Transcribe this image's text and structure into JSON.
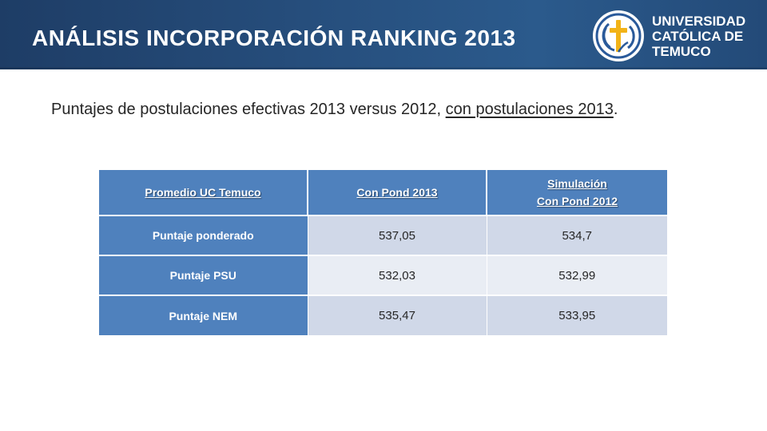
{
  "header": {
    "title": "ANÁLISIS INCORPORACIÓN RANKING 2013",
    "logo": {
      "line1": "UNIVERSIDAD",
      "line2": "CATÓLICA DE",
      "line3": "TEMUCO",
      "colors": {
        "blue": "#2a5a9a",
        "gold": "#f2b317"
      }
    }
  },
  "intro": {
    "text": "Puntajes de postulaciones efectivas 2013 versus 2012, ",
    "underlined": "con postulaciones 2013",
    "end": "."
  },
  "table": {
    "headers": {
      "col1": "Promedio UC Temuco",
      "col2": "Con Pond 2013",
      "col3_line1": "Simulación",
      "col3_line2": "Con Pond 2012"
    },
    "rows": [
      {
        "label": "Puntaje ponderado",
        "pond2013": "537,05",
        "pond2012": "534,7"
      },
      {
        "label": "Puntaje PSU",
        "pond2013": "532,03",
        "pond2012": "532,99"
      },
      {
        "label": "Puntaje NEM",
        "pond2013": "535,47",
        "pond2012": "533,95"
      }
    ],
    "colors": {
      "header": "#4f81bd",
      "row_odd": "#d0d8e8",
      "row_even": "#e9edf4"
    }
  }
}
